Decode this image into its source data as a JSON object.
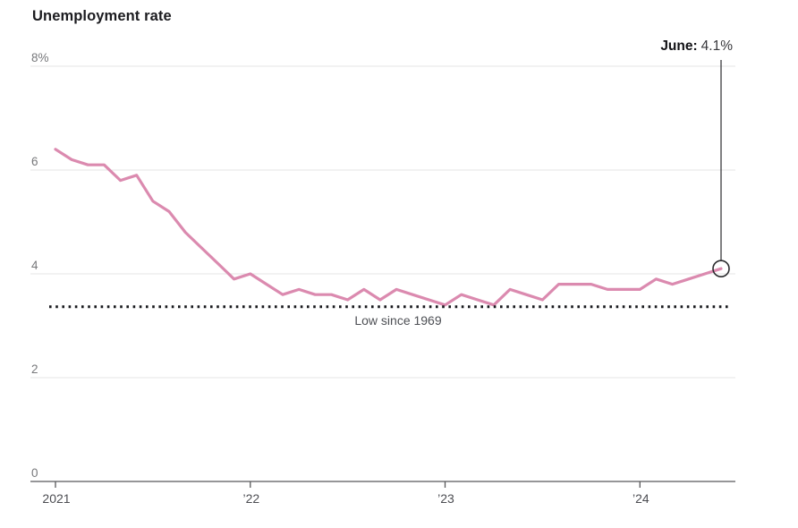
{
  "chart_data": {
    "type": "line",
    "title": "Unemployment rate",
    "x_start": "2021-01",
    "x_end": "2024-06",
    "x_months": 42,
    "series": [
      {
        "name": "Unemployment rate (%)",
        "values": [
          6.4,
          6.2,
          6.1,
          6.1,
          5.8,
          5.9,
          5.4,
          5.2,
          4.8,
          4.5,
          4.2,
          3.9,
          4.0,
          3.8,
          3.6,
          3.7,
          3.6,
          3.6,
          3.5,
          3.7,
          3.5,
          3.7,
          3.6,
          3.5,
          3.4,
          3.6,
          3.5,
          3.4,
          3.7,
          3.6,
          3.5,
          3.8,
          3.8,
          3.8,
          3.7,
          3.7,
          3.7,
          3.9,
          3.8,
          3.9,
          4.0,
          4.1
        ]
      }
    ],
    "xlabel": "",
    "ylabel": "",
    "ylim": [
      0,
      8
    ],
    "y_ticks": [
      0,
      2,
      4,
      6,
      8
    ],
    "y_tick_labels": [
      "0",
      "2",
      "4",
      "6",
      "8%"
    ],
    "x_tick_month_indices": [
      0,
      12,
      24,
      36
    ],
    "x_tick_labels": [
      "2021",
      "’22",
      "’23",
      "’24"
    ],
    "grid": "horizontal",
    "legend_position": "none",
    "reference_line": {
      "value": 3.4,
      "label": "Low since 1969",
      "style": "dotted"
    },
    "annotation": {
      "label": "June:",
      "value": "4.1%",
      "point_value": 4.1,
      "point_month": "2024-06",
      "marker": "open-circle"
    },
    "colors": {
      "line": "#db8aaf",
      "grid": "#e4e5e6",
      "axis": "#57585a",
      "reference_line": "#17181c",
      "x_tick_text": "#4c4d52",
      "y_tick_text": "#77787b",
      "reference_label_text": "#4e5055",
      "annotation_text": "#1a1a1e"
    }
  }
}
